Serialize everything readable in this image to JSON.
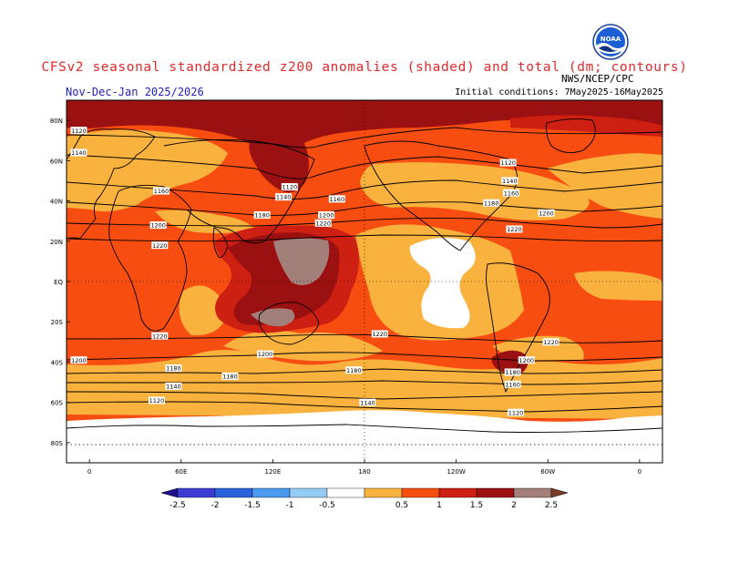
{
  "header": {
    "title": "CFSv2 seasonal standardized z200 anomalies (shaded) and total (dm; contours)",
    "period": "Nov-Dec-Jan 2025/2026",
    "initial_conditions": "Initial conditions: 7May2025-16May2025",
    "agency": "NWS/NCEP/CPC",
    "logo_text": "NOAA"
  },
  "map": {
    "lat_labels": [
      "80N",
      "60N",
      "40N",
      "20N",
      "EQ",
      "20S",
      "40S",
      "60S",
      "80S"
    ],
    "lat_values": [
      80,
      60,
      40,
      20,
      0,
      -20,
      -40,
      -60,
      -80
    ],
    "lon_labels": [
      "0",
      "60E",
      "120E",
      "180",
      "120W",
      "60W",
      "0"
    ],
    "lon_values": [
      0,
      60,
      120,
      180,
      240,
      300,
      360
    ],
    "lon_range": [
      -15,
      375
    ],
    "lat_range": [
      -90,
      90
    ],
    "contour_labels": [
      {
        "text": "1120",
        "lon": -7,
        "lat": 75
      },
      {
        "text": "1140",
        "lon": -7,
        "lat": 64
      },
      {
        "text": "1160",
        "lon": 47,
        "lat": 45
      },
      {
        "text": "1200",
        "lon": 45,
        "lat": 28
      },
      {
        "text": "1220",
        "lon": 46,
        "lat": 18
      },
      {
        "text": "1120",
        "lon": 131,
        "lat": 47
      },
      {
        "text": "1140",
        "lon": 127,
        "lat": 42
      },
      {
        "text": "1160",
        "lon": 162,
        "lat": 41
      },
      {
        "text": "1180",
        "lon": 113,
        "lat": 33
      },
      {
        "text": "1200",
        "lon": 155,
        "lat": 33
      },
      {
        "text": "1220",
        "lon": 153,
        "lat": 29
      },
      {
        "text": "1120",
        "lon": 274,
        "lat": 59
      },
      {
        "text": "1140",
        "lon": 275,
        "lat": 50
      },
      {
        "text": "1160",
        "lon": 276,
        "lat": 44
      },
      {
        "text": "1180",
        "lon": 263,
        "lat": 39
      },
      {
        "text": "1200",
        "lon": 299,
        "lat": 34
      },
      {
        "text": "1220",
        "lon": 278,
        "lat": 26
      },
      {
        "text": "1220",
        "lon": 46,
        "lat": -27
      },
      {
        "text": "1200",
        "lon": 115,
        "lat": -36
      },
      {
        "text": "1220",
        "lon": 190,
        "lat": -26
      },
      {
        "text": "1220",
        "lon": 302,
        "lat": -30
      },
      {
        "text": "1200",
        "lon": -7,
        "lat": -39
      },
      {
        "text": "1200",
        "lon": 286,
        "lat": -39
      },
      {
        "text": "1180",
        "lon": 55,
        "lat": -43
      },
      {
        "text": "1180",
        "lon": 92,
        "lat": -47
      },
      {
        "text": "1180",
        "lon": 173,
        "lat": -44
      },
      {
        "text": "1180",
        "lon": 277,
        "lat": -45
      },
      {
        "text": "1160",
        "lon": 277,
        "lat": -51
      },
      {
        "text": "1140",
        "lon": 55,
        "lat": -52
      },
      {
        "text": "1120",
        "lon": 44,
        "lat": -59
      },
      {
        "text": "1140",
        "lon": 182,
        "lat": -60
      },
      {
        "text": "1120",
        "lon": 279,
        "lat": -65
      }
    ]
  },
  "colorbar": {
    "labels": [
      "-2.5",
      "-2",
      "-1.5",
      "-1",
      "-0.5",
      "0.5",
      "1",
      "1.5",
      "2",
      "2.5"
    ],
    "colors": [
      "#1e0f8c",
      "#3c3cd2",
      "#2a64dc",
      "#4c9aef",
      "#93cbf5",
      "#ffffff",
      "#f9b23e",
      "#f74d11",
      "#cd1f12",
      "#9b1010",
      "#a37f7a",
      "#7a3a26"
    ]
  },
  "palette": {
    "white": "#ffffff",
    "light_orange": "#f9b23e",
    "orange_red": "#f74d11",
    "red": "#cd1f12",
    "dark_red": "#9b1010",
    "taupe": "#a37f7a",
    "title_red": "#e02a2a",
    "subtitle_blue": "#2020c0"
  }
}
